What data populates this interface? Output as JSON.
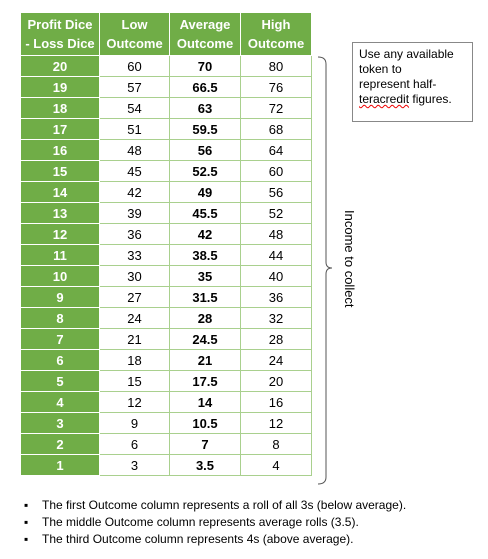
{
  "table": {
    "header": [
      [
        "Profit Dice",
        "- Loss Dice"
      ],
      [
        "Low",
        "Outcome"
      ],
      [
        "Average",
        "Outcome"
      ],
      [
        "High",
        "Outcome"
      ]
    ],
    "rows": [
      [
        20,
        60,
        70,
        80
      ],
      [
        19,
        57,
        66.5,
        76
      ],
      [
        18,
        54,
        63,
        72
      ],
      [
        17,
        51,
        59.5,
        68
      ],
      [
        16,
        48,
        56,
        64
      ],
      [
        15,
        45,
        52.5,
        60
      ],
      [
        14,
        42,
        49,
        56
      ],
      [
        13,
        39,
        45.5,
        52
      ],
      [
        12,
        36,
        42,
        48
      ],
      [
        11,
        33,
        38.5,
        44
      ],
      [
        10,
        30,
        35,
        40
      ],
      [
        9,
        27,
        31.5,
        36
      ],
      [
        8,
        24,
        28,
        32
      ],
      [
        7,
        21,
        24.5,
        28
      ],
      [
        6,
        18,
        21,
        24
      ],
      [
        5,
        15,
        17.5,
        20
      ],
      [
        4,
        12,
        14,
        16
      ],
      [
        3,
        9,
        10.5,
        12
      ],
      [
        2,
        6,
        7,
        8
      ],
      [
        1,
        3,
        3.5,
        4
      ]
    ]
  },
  "note": [
    "Use any available",
    "token to",
    "represent half-",
    "teracredit figures."
  ],
  "side_label": "Income to collect",
  "bullets": [
    "The first Outcome column represents a roll of all 3s (below average).",
    "The middle Outcome column represents average rolls (3.5).",
    "The third Outcome column represents 4s (above average)."
  ]
}
